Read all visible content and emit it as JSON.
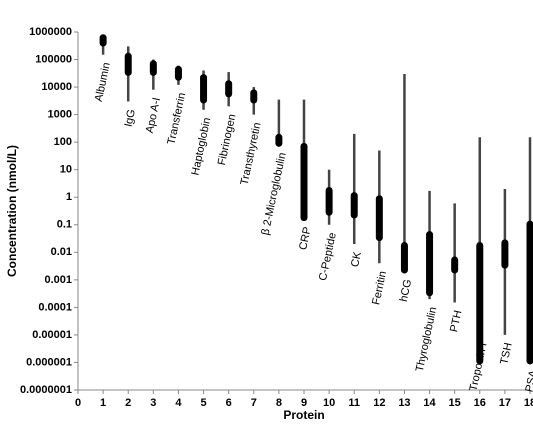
{
  "chart_data": {
    "type": "range",
    "x_label": "Protein",
    "y_label": "Concentration (nmol/L)",
    "x": [
      1,
      2,
      3,
      4,
      5,
      6,
      7,
      8,
      9,
      10,
      11,
      12,
      13,
      14,
      15,
      16,
      17,
      18
    ],
    "labels": [
      "Albumin",
      "IgG",
      "Apo A-I",
      "Transferrin",
      "Haptoglobin",
      "Fibrinogen",
      "Transthyretin",
      "β 2-Microglobulin",
      "CRP",
      "C-Peptide",
      "CK",
      "Ferritin",
      "hCG",
      "Thyroglobulin",
      "PTH",
      "Troponin I",
      "TSH",
      "PSA"
    ],
    "range_low": [
      150000,
      3000,
      8000,
      12000,
      1500,
      2000,
      1000,
      80,
      0.16,
      0.1,
      0.02,
      0.004,
      0.002,
      0.0002,
      0.00015,
      1e-05,
      1e-05,
      1e-06
    ],
    "range_high": [
      800000,
      300000,
      100000,
      60000,
      40000,
      35000,
      10000,
      3500,
      3500,
      10,
      200,
      50,
      30000,
      1.7,
      0.6,
      150,
      2,
      150
    ],
    "box_low": [
      350000,
      30000,
      30000,
      20000,
      3000,
      5000,
      3000,
      80,
      0.16,
      0.25,
      0.2,
      0.03,
      0.002,
      0.0003,
      0.002,
      1e-06,
      0.003,
      1e-06
    ],
    "box_high": [
      700000,
      150000,
      80000,
      50000,
      25000,
      15000,
      7000,
      170,
      80,
      2,
      1.3,
      1,
      0.02,
      0.05,
      0.006,
      0.02,
      0.025,
      0.12
    ],
    "line_color": "#444444",
    "box_color": "#000000",
    "log_y": true,
    "xlim": [
      0,
      18
    ],
    "xticks": [
      0,
      1,
      2,
      3,
      4,
      5,
      6,
      7,
      8,
      9,
      10,
      11,
      12,
      13,
      14,
      15,
      16,
      17,
      18
    ],
    "ylim": [
      1e-07,
      1000000
    ],
    "yticks": [
      {
        "value": 1e-07,
        "label": "0.0000001"
      },
      1e-06,
      1e-05,
      0.0001,
      0.001,
      0.01,
      0.1,
      1,
      10,
      100,
      1000,
      10000,
      100000,
      1000000
    ]
  }
}
